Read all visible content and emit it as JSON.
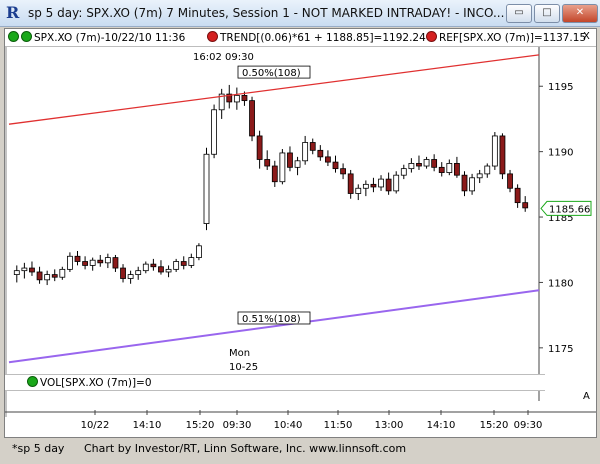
{
  "window": {
    "title": "sp 5 day: SPX.XO (7m) 7 Minutes, Session 1 - NOT MARKED INTRADAY! - INCO...",
    "minimize": "▭",
    "maximize": "□",
    "close": "✕"
  },
  "header": {
    "symbol": "SPX.XO (7m)-10/22/10 11:36",
    "trend": "TREND[(0.06)*61 + 1188.85]=1192.24",
    "ref": "REF[SPX.XO (7m)]=1137.15",
    "corner_marker": "X"
  },
  "volume_panel": {
    "label": "VOL[SPX.XO (7m)]=0",
    "corner_marker": "A"
  },
  "status": {
    "tab": "*sp 5 day",
    "credit": "Chart by Investor/RT, Linn Software, Inc. www.linnsoft.com"
  },
  "colors": {
    "up_candle": "#ffffff",
    "down_candle": "#8b1a1a",
    "upper_trend": "#e03030",
    "lower_trend": "#9966ee",
    "last_price_badge": "#1aa81a"
  },
  "chart_data": {
    "type": "candlestick",
    "ylim": [
      1173,
      1198
    ],
    "y_ticks": [
      1175,
      1180,
      1185,
      1190,
      1195
    ],
    "x_tick_labels": [
      "10/22",
      "14:10",
      "15:20",
      "09:30",
      "10:40",
      "11:50",
      "13:00",
      "14:10",
      "15:20",
      "09:30"
    ],
    "session_label_top": "16:02  09:30",
    "session_label_bottom_1": "Mon",
    "session_label_bottom_2": "10-25",
    "last_price": "1185.66",
    "annotations": [
      {
        "text": "0.50%(108)",
        "attached_to": "upper trend line"
      },
      {
        "text": "0.51%(108)",
        "attached_to": "lower trend line"
      }
    ],
    "trend_lines": [
      {
        "name": "upper",
        "from": [
          0,
          1192.1
        ],
        "to": [
          1,
          1197.4
        ]
      },
      {
        "name": "lower",
        "from": [
          0,
          1173.9
        ],
        "to": [
          1,
          1179.4
        ]
      }
    ],
    "candles": [
      {
        "o": 1180.6,
        "h": 1181.3,
        "l": 1180.0,
        "c": 1180.9
      },
      {
        "o": 1180.9,
        "h": 1181.5,
        "l": 1180.3,
        "c": 1181.1
      },
      {
        "o": 1181.1,
        "h": 1181.6,
        "l": 1180.5,
        "c": 1180.8
      },
      {
        "o": 1180.8,
        "h": 1181.2,
        "l": 1179.9,
        "c": 1180.2
      },
      {
        "o": 1180.2,
        "h": 1180.9,
        "l": 1179.8,
        "c": 1180.6
      },
      {
        "o": 1180.6,
        "h": 1181.0,
        "l": 1180.1,
        "c": 1180.4
      },
      {
        "o": 1180.4,
        "h": 1181.2,
        "l": 1180.2,
        "c": 1181.0
      },
      {
        "o": 1181.0,
        "h": 1182.3,
        "l": 1180.8,
        "c": 1182.0
      },
      {
        "o": 1182.0,
        "h": 1182.4,
        "l": 1181.3,
        "c": 1181.6
      },
      {
        "o": 1181.6,
        "h": 1182.0,
        "l": 1181.0,
        "c": 1181.3
      },
      {
        "o": 1181.3,
        "h": 1181.9,
        "l": 1180.9,
        "c": 1181.7
      },
      {
        "o": 1181.7,
        "h": 1182.1,
        "l": 1181.2,
        "c": 1181.5
      },
      {
        "o": 1181.5,
        "h": 1182.2,
        "l": 1181.1,
        "c": 1181.9
      },
      {
        "o": 1181.9,
        "h": 1182.1,
        "l": 1180.8,
        "c": 1181.1
      },
      {
        "o": 1181.1,
        "h": 1181.4,
        "l": 1180.0,
        "c": 1180.3
      },
      {
        "o": 1180.3,
        "h": 1180.9,
        "l": 1179.9,
        "c": 1180.6
      },
      {
        "o": 1180.6,
        "h": 1181.2,
        "l": 1180.2,
        "c": 1180.9
      },
      {
        "o": 1180.9,
        "h": 1181.6,
        "l": 1180.7,
        "c": 1181.4
      },
      {
        "o": 1181.4,
        "h": 1181.8,
        "l": 1180.9,
        "c": 1181.2
      },
      {
        "o": 1181.2,
        "h": 1181.7,
        "l": 1180.6,
        "c": 1180.8
      },
      {
        "o": 1180.8,
        "h": 1181.3,
        "l": 1180.4,
        "c": 1181.0
      },
      {
        "o": 1181.0,
        "h": 1181.8,
        "l": 1180.8,
        "c": 1181.6
      },
      {
        "o": 1181.6,
        "h": 1182.0,
        "l": 1181.0,
        "c": 1181.3
      },
      {
        "o": 1181.3,
        "h": 1182.2,
        "l": 1181.1,
        "c": 1181.9
      },
      {
        "o": 1181.9,
        "h": 1183.0,
        "l": 1181.7,
        "c": 1182.8
      },
      {
        "o": 1184.5,
        "h": 1190.3,
        "l": 1184.0,
        "c": 1189.8
      },
      {
        "o": 1189.8,
        "h": 1193.6,
        "l": 1189.5,
        "c": 1193.2
      },
      {
        "o": 1193.2,
        "h": 1194.8,
        "l": 1192.5,
        "c": 1194.4
      },
      {
        "o": 1194.4,
        "h": 1195.1,
        "l": 1193.3,
        "c": 1193.8
      },
      {
        "o": 1193.8,
        "h": 1194.9,
        "l": 1193.2,
        "c": 1194.3
      },
      {
        "o": 1194.3,
        "h": 1194.6,
        "l": 1193.5,
        "c": 1193.9
      },
      {
        "o": 1193.9,
        "h": 1194.2,
        "l": 1190.8,
        "c": 1191.2
      },
      {
        "o": 1191.2,
        "h": 1191.6,
        "l": 1188.7,
        "c": 1189.4
      },
      {
        "o": 1189.4,
        "h": 1190.1,
        "l": 1188.6,
        "c": 1188.9
      },
      {
        "o": 1188.9,
        "h": 1189.3,
        "l": 1187.3,
        "c": 1187.7
      },
      {
        "o": 1187.7,
        "h": 1190.2,
        "l": 1187.5,
        "c": 1189.9
      },
      {
        "o": 1189.9,
        "h": 1190.4,
        "l": 1188.5,
        "c": 1188.8
      },
      {
        "o": 1188.8,
        "h": 1189.6,
        "l": 1188.2,
        "c": 1189.3
      },
      {
        "o": 1189.3,
        "h": 1191.2,
        "l": 1189.0,
        "c": 1190.7
      },
      {
        "o": 1190.7,
        "h": 1191.0,
        "l": 1189.8,
        "c": 1190.1
      },
      {
        "o": 1190.1,
        "h": 1190.5,
        "l": 1189.3,
        "c": 1189.6
      },
      {
        "o": 1189.6,
        "h": 1190.1,
        "l": 1188.9,
        "c": 1189.2
      },
      {
        "o": 1189.2,
        "h": 1189.7,
        "l": 1188.4,
        "c": 1188.7
      },
      {
        "o": 1188.7,
        "h": 1189.1,
        "l": 1187.9,
        "c": 1188.3
      },
      {
        "o": 1188.3,
        "h": 1188.6,
        "l": 1186.4,
        "c": 1186.8
      },
      {
        "o": 1186.8,
        "h": 1187.5,
        "l": 1186.3,
        "c": 1187.2
      },
      {
        "o": 1187.2,
        "h": 1187.8,
        "l": 1186.6,
        "c": 1187.5
      },
      {
        "o": 1187.5,
        "h": 1188.0,
        "l": 1186.9,
        "c": 1187.3
      },
      {
        "o": 1187.3,
        "h": 1188.2,
        "l": 1187.0,
        "c": 1187.9
      },
      {
        "o": 1187.9,
        "h": 1188.4,
        "l": 1186.7,
        "c": 1187.0
      },
      {
        "o": 1187.0,
        "h": 1188.5,
        "l": 1186.8,
        "c": 1188.2
      },
      {
        "o": 1188.2,
        "h": 1189.0,
        "l": 1187.9,
        "c": 1188.7
      },
      {
        "o": 1188.7,
        "h": 1189.5,
        "l": 1188.4,
        "c": 1189.1
      },
      {
        "o": 1189.1,
        "h": 1189.7,
        "l": 1188.6,
        "c": 1188.9
      },
      {
        "o": 1188.9,
        "h": 1189.6,
        "l": 1188.7,
        "c": 1189.4
      },
      {
        "o": 1189.4,
        "h": 1189.8,
        "l": 1188.5,
        "c": 1188.8
      },
      {
        "o": 1188.8,
        "h": 1189.2,
        "l": 1188.1,
        "c": 1188.4
      },
      {
        "o": 1188.4,
        "h": 1189.4,
        "l": 1188.2,
        "c": 1189.1
      },
      {
        "o": 1189.1,
        "h": 1189.6,
        "l": 1188.0,
        "c": 1188.2
      },
      {
        "o": 1188.2,
        "h": 1188.5,
        "l": 1186.6,
        "c": 1187.0
      },
      {
        "o": 1187.0,
        "h": 1188.3,
        "l": 1186.7,
        "c": 1188.0
      },
      {
        "o": 1188.0,
        "h": 1188.6,
        "l": 1187.6,
        "c": 1188.3
      },
      {
        "o": 1188.3,
        "h": 1189.1,
        "l": 1188.0,
        "c": 1188.9
      },
      {
        "o": 1188.9,
        "h": 1191.5,
        "l": 1188.6,
        "c": 1191.2
      },
      {
        "o": 1191.2,
        "h": 1191.4,
        "l": 1187.9,
        "c": 1188.3
      },
      {
        "o": 1188.3,
        "h": 1188.6,
        "l": 1186.9,
        "c": 1187.2
      },
      {
        "o": 1187.2,
        "h": 1187.5,
        "l": 1185.7,
        "c": 1186.1
      },
      {
        "o": 1186.1,
        "h": 1186.6,
        "l": 1185.4,
        "c": 1185.7
      }
    ]
  }
}
